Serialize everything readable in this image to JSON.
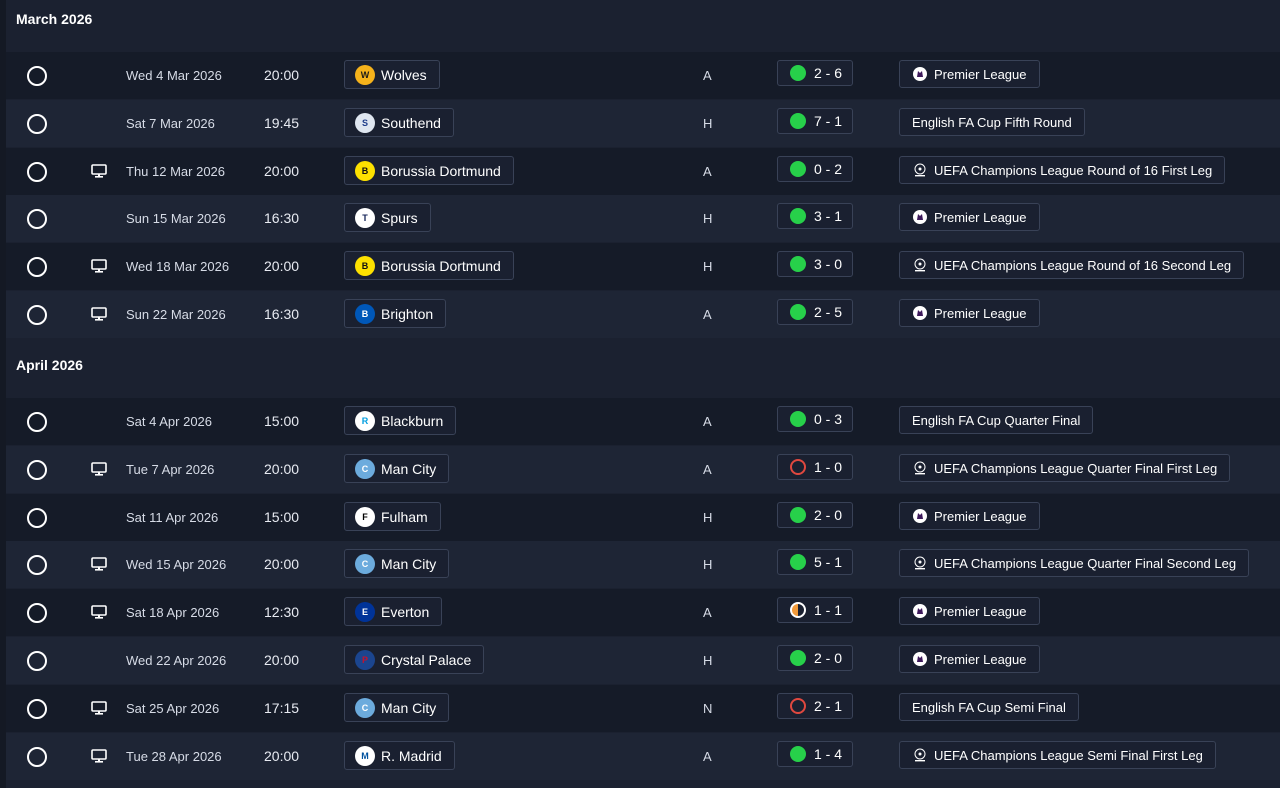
{
  "sections": [
    {
      "title": "March 2026",
      "fixtures": [
        {
          "tv": false,
          "date": "Wed 4 Mar 2026",
          "time": "20:00",
          "team": "Wolves",
          "crest": "wolves-crest-icon",
          "venue": "A",
          "result": "win",
          "score": "2 - 6",
          "competition": "Premier League",
          "comp_logo": "premier-league-logo-icon"
        },
        {
          "tv": false,
          "date": "Sat 7 Mar 2026",
          "time": "19:45",
          "team": "Southend",
          "crest": "southend-crest-icon",
          "venue": "H",
          "result": "win",
          "score": "7 - 1",
          "competition": "English FA Cup Fifth Round",
          "comp_logo": ""
        },
        {
          "tv": true,
          "date": "Thu 12 Mar 2026",
          "time": "20:00",
          "team": "Borussia Dortmund",
          "crest": "dortmund-crest-icon",
          "venue": "A",
          "result": "win",
          "score": "0 - 2",
          "competition": "UEFA Champions League Round of 16  First Leg",
          "comp_logo": "champions-league-logo-icon"
        },
        {
          "tv": false,
          "date": "Sun 15 Mar 2026",
          "time": "16:30",
          "team": "Spurs",
          "crest": "spurs-crest-icon",
          "venue": "H",
          "result": "win",
          "score": "3 - 1",
          "competition": "Premier League",
          "comp_logo": "premier-league-logo-icon"
        },
        {
          "tv": true,
          "date": "Wed 18 Mar 2026",
          "time": "20:00",
          "team": "Borussia Dortmund",
          "crest": "dortmund-crest-icon",
          "venue": "H",
          "result": "win",
          "score": "3 - 0",
          "competition": "UEFA Champions League Round of 16  Second Leg",
          "comp_logo": "champions-league-logo-icon"
        },
        {
          "tv": true,
          "date": "Sun 22 Mar 2026",
          "time": "16:30",
          "team": "Brighton",
          "crest": "brighton-crest-icon",
          "venue": "A",
          "result": "win",
          "score": "2 - 5",
          "competition": "Premier League",
          "comp_logo": "premier-league-logo-icon"
        }
      ]
    },
    {
      "title": "April 2026",
      "fixtures": [
        {
          "tv": false,
          "date": "Sat 4 Apr 2026",
          "time": "15:00",
          "team": "Blackburn",
          "crest": "blackburn-crest-icon",
          "venue": "A",
          "result": "win",
          "score": "0 - 3",
          "competition": "English FA Cup Quarter Final",
          "comp_logo": ""
        },
        {
          "tv": true,
          "date": "Tue 7 Apr 2026",
          "time": "20:00",
          "team": "Man City",
          "crest": "man-city-crest-icon",
          "venue": "A",
          "result": "loss",
          "score": "1 - 0",
          "competition": "UEFA Champions League Quarter Final First Leg",
          "comp_logo": "champions-league-logo-icon"
        },
        {
          "tv": false,
          "date": "Sat 11 Apr 2026",
          "time": "15:00",
          "team": "Fulham",
          "crest": "fulham-crest-icon",
          "venue": "H",
          "result": "win",
          "score": "2 - 0",
          "competition": "Premier League",
          "comp_logo": "premier-league-logo-icon"
        },
        {
          "tv": true,
          "date": "Wed 15 Apr 2026",
          "time": "20:00",
          "team": "Man City",
          "crest": "man-city-crest-icon",
          "venue": "H",
          "result": "win",
          "score": "5 - 1",
          "competition": "UEFA Champions League Quarter Final Second Leg",
          "comp_logo": "champions-league-logo-icon"
        },
        {
          "tv": true,
          "date": "Sat 18 Apr 2026",
          "time": "12:30",
          "team": "Everton",
          "crest": "everton-crest-icon",
          "venue": "A",
          "result": "draw",
          "score": "1 - 1",
          "competition": "Premier League",
          "comp_logo": "premier-league-logo-icon"
        },
        {
          "tv": false,
          "date": "Wed 22 Apr 2026",
          "time": "20:00",
          "team": "Crystal Palace",
          "crest": "crystal-palace-crest-icon",
          "venue": "H",
          "result": "win",
          "score": "2 - 0",
          "competition": "Premier League",
          "comp_logo": "premier-league-logo-icon"
        },
        {
          "tv": true,
          "date": "Sat 25 Apr 2026",
          "time": "17:15",
          "team": "Man City",
          "crest": "man-city-crest-icon",
          "venue": "N",
          "result": "loss",
          "score": "2 - 1",
          "competition": "English FA Cup Semi Final",
          "comp_logo": ""
        },
        {
          "tv": true,
          "date": "Tue 28 Apr 2026",
          "time": "20:00",
          "team": "R. Madrid",
          "crest": "real-madrid-crest-icon",
          "venue": "A",
          "result": "win",
          "score": "1 - 4",
          "competition": "UEFA Champions League Semi Final First Leg",
          "comp_logo": "champions-league-logo-icon"
        }
      ]
    }
  ],
  "colors": {
    "win": "#27d04a",
    "loss": "#e0483f",
    "draw": "#f29a3a",
    "row_dark": "#151b28",
    "row_light": "#1e2535",
    "background": "#1b2130"
  }
}
